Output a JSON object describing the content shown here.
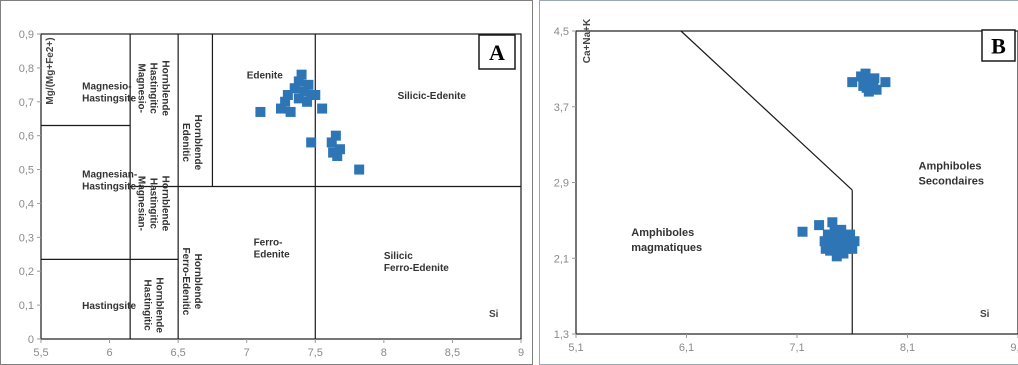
{
  "chart_data": [
    {
      "panel_label": "A",
      "type": "scatter",
      "xlabel": "Si",
      "ylabel": "Mg/(Mg+Fe2+)",
      "xlim": [
        5.5,
        9
      ],
      "ylim": [
        0,
        0.9
      ],
      "x_ticks": [
        "5,5",
        "6",
        "6,5",
        "7",
        "7,5",
        "8",
        "8,5",
        "9"
      ],
      "y_ticks": [
        "0",
        "0,1",
        "0,2",
        "0,3",
        "0,4",
        "0,5",
        "0,6",
        "0,7",
        "0,8",
        "0,9"
      ],
      "regions": [
        {
          "name": "Magnesio-Hastingsite",
          "lines": [
            "Magnesio-",
            "Hastingsite"
          ],
          "x": 5.8,
          "y": 0.73
        },
        {
          "name": "Magnesian-Hastingsite",
          "lines": [
            "Magnesian-",
            "Hastingsite"
          ],
          "x": 5.8,
          "y": 0.47
        },
        {
          "name": "Hastingsite",
          "lines": [
            "Hastingsite"
          ],
          "x": 5.8,
          "y": 0.1
        },
        {
          "name": "Magnesio-Hastingitic Hornblende",
          "lines": [
            "Magnesio-",
            "Hastingitic",
            "Hornblende"
          ],
          "x": 6.3,
          "y": 0.74,
          "vertical": true
        },
        {
          "name": "Magnesian-Hastingitic Hornblende",
          "lines": [
            "Magnesian-",
            "Hastingitic",
            "Hornblende"
          ],
          "x": 6.3,
          "y": 0.4,
          "vertical": true
        },
        {
          "name": "Hastingitic Hornblende",
          "lines": [
            "Hastingitic",
            "Hornblende"
          ],
          "x": 6.3,
          "y": 0.1,
          "vertical": true
        },
        {
          "name": "Edenitic Hornblende",
          "lines": [
            "Edenitic",
            "Hornblende"
          ],
          "x": 6.58,
          "y": 0.58,
          "vertical": true
        },
        {
          "name": "Ferro-Edenitic Hornblende",
          "lines": [
            "Ferro-Edenitic",
            "Hornblende"
          ],
          "x": 6.58,
          "y": 0.17,
          "vertical": true
        },
        {
          "name": "Edenite",
          "lines": [
            "Edenite"
          ],
          "x": 7.0,
          "y": 0.78
        },
        {
          "name": "Silicic-Edenite",
          "lines": [
            "Silicic-Edenite"
          ],
          "x": 8.1,
          "y": 0.72
        },
        {
          "name": "Ferro-Edenite",
          "lines": [
            "Ferro-",
            "Edenite"
          ],
          "x": 7.05,
          "y": 0.27
        },
        {
          "name": "Silicic Ferro-Edenite",
          "lines": [
            "Silicic",
            "Ferro-Edenite"
          ],
          "x": 8.0,
          "y": 0.23
        }
      ],
      "boundaries": [
        {
          "x1": 6.15,
          "y1": 0.9,
          "x2": 6.15,
          "y2": 0
        },
        {
          "x1": 6.5,
          "y1": 0.9,
          "x2": 6.5,
          "y2": 0
        },
        {
          "x1": 6.75,
          "y1": 0.9,
          "x2": 6.75,
          "y2": 0.45
        },
        {
          "x1": 7.5,
          "y1": 0.9,
          "x2": 7.5,
          "y2": 0
        },
        {
          "x1": 5.5,
          "y1": 0.63,
          "x2": 6.15,
          "y2": 0.63
        },
        {
          "x1": 5.5,
          "y1": 0.235,
          "x2": 6.15,
          "y2": 0.235
        },
        {
          "x1": 6.15,
          "y1": 0.45,
          "x2": 9,
          "y2": 0.45
        },
        {
          "x1": 6.15,
          "y1": 0.235,
          "x2": 6.5,
          "y2": 0.235
        }
      ],
      "series": [
        {
          "marker": "square",
          "color": "#2e75b6",
          "x": [
            7.1,
            7.25,
            7.28,
            7.3,
            7.32,
            7.35,
            7.38,
            7.38,
            7.4,
            7.42,
            7.44,
            7.45,
            7.47,
            7.5,
            7.55,
            7.47,
            7.62,
            7.65,
            7.68,
            7.63,
            7.66,
            7.82
          ],
          "y": [
            0.67,
            0.68,
            0.7,
            0.72,
            0.67,
            0.74,
            0.71,
            0.76,
            0.78,
            0.73,
            0.7,
            0.75,
            0.72,
            0.72,
            0.68,
            0.58,
            0.58,
            0.6,
            0.56,
            0.55,
            0.54,
            0.5
          ]
        }
      ]
    },
    {
      "panel_label": "B",
      "type": "scatter",
      "xlabel": "Si",
      "ylabel": "Ca+Na+K",
      "xlim": [
        5.1,
        9.1
      ],
      "ylim": [
        1.3,
        4.5
      ],
      "x_ticks": [
        "5,1",
        "6,1",
        "7,1",
        "8,1",
        "9,1"
      ],
      "y_ticks": [
        "1,3",
        "2,1",
        "2,9",
        "3,7",
        "4,5"
      ],
      "regions": [
        {
          "name": "Amphiboles Secondaires",
          "lines": [
            "Amphiboles",
            "Secondaires"
          ],
          "x": 8.2,
          "y": 3.0
        },
        {
          "name": "Amphiboles magmatiques",
          "lines": [
            "Amphiboles",
            "magmatiques"
          ],
          "x": 5.6,
          "y": 2.3
        }
      ],
      "boundaries": [
        {
          "x1": 6.05,
          "y1": 4.5,
          "x2": 7.6,
          "y2": 2.82
        },
        {
          "x1": 7.6,
          "y1": 2.82,
          "x2": 7.6,
          "y2": 1.3
        }
      ],
      "series": [
        {
          "marker": "square",
          "color": "#2e75b6",
          "x": [
            7.6,
            7.68,
            7.72,
            7.75,
            7.78,
            7.7,
            7.8,
            7.82,
            7.9,
            7.75,
            7.73,
            7.79,
            7.15,
            7.3,
            7.35,
            7.38,
            7.42,
            7.45,
            7.5,
            7.55,
            7.58,
            7.62,
            7.4,
            7.48,
            7.52,
            7.56,
            7.44,
            7.36,
            7.46,
            7.6,
            7.5,
            7.42
          ],
          "y": [
            3.96,
            4.02,
            4.05,
            3.98,
            3.95,
            3.92,
            4.0,
            3.88,
            3.96,
            3.86,
            3.9,
            3.93,
            2.38,
            2.45,
            2.28,
            2.35,
            2.48,
            2.3,
            2.4,
            2.25,
            2.35,
            2.28,
            2.18,
            2.22,
            2.15,
            2.2,
            2.38,
            2.2,
            2.12,
            2.2,
            2.3,
            2.27
          ]
        }
      ]
    }
  ]
}
